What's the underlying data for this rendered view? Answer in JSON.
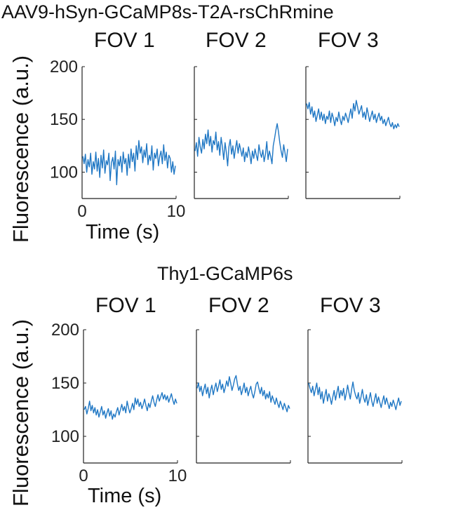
{
  "chart_data": [
    {
      "type": "line",
      "group_title": "AAV9-hSyn-GCaMP8s-T2A-rsChRmine",
      "ylabel": "Fluorescence (a.u.)",
      "xlabel": "Time (s)",
      "ylim": [
        75,
        200
      ],
      "yticks": [
        100,
        150,
        200
      ],
      "xlim": [
        0,
        10
      ],
      "xticks": [
        0,
        10
      ],
      "line_color": "#1f77c4",
      "panels": [
        {
          "title": "FOV 1",
          "y": [
            115,
            108,
            117,
            100,
            112,
            105,
            118,
            98,
            110,
            103,
            119,
            101,
            113,
            95,
            116,
            104,
            121,
            99,
            111,
            107,
            118,
            92,
            109,
            114,
            103,
            120,
            88,
            112,
            106,
            115,
            100,
            119,
            108,
            113,
            97,
            117,
            104,
            122,
            110,
            118,
            101,
            125,
            112,
            130,
            118,
            124,
            109,
            121,
            114,
            127,
            107,
            116,
            111,
            125,
            102,
            118,
            113,
            122,
            106,
            115,
            120,
            108,
            126,
            111,
            119,
            104,
            116,
            113,
            100,
            110,
            98,
            106
          ]
        },
        {
          "title": "FOV 2",
          "y": [
            120,
            128,
            115,
            133,
            124,
            118,
            131,
            122,
            136,
            127,
            140,
            125,
            134,
            119,
            130,
            126,
            138,
            121,
            129,
            116,
            133,
            124,
            112,
            128,
            119,
            106,
            124,
            131,
            117,
            125,
            113,
            122,
            130,
            118,
            127,
            121,
            115,
            123,
            110,
            119,
            114,
            124,
            117,
            108,
            120,
            113,
            122,
            116,
            111,
            126,
            118,
            114,
            121,
            110,
            117,
            129,
            112,
            120,
            115,
            108,
            125,
            132,
            140,
            146,
            138,
            128,
            120,
            114,
            126,
            118,
            110,
            122
          ]
        },
        {
          "title": "FOV 3",
          "y": [
            165,
            160,
            166,
            155,
            162,
            152,
            158,
            148,
            154,
            160,
            150,
            157,
            149,
            155,
            146,
            153,
            150,
            158,
            147,
            156,
            151,
            144,
            152,
            148,
            157,
            150,
            145,
            153,
            149,
            156,
            152,
            147,
            154,
            160,
            151,
            165,
            158,
            168,
            162,
            155,
            159,
            163,
            152,
            157,
            150,
            161,
            155,
            148,
            153,
            158,
            150,
            155,
            147,
            152,
            156,
            149,
            153,
            146,
            150,
            144,
            148,
            152,
            146,
            143,
            147,
            141,
            145,
            142,
            146,
            143
          ]
        }
      ]
    },
    {
      "type": "line",
      "group_title": "Thy1-GCaMP6s",
      "ylabel": "Fluorescence (a.u.)",
      "xlabel": "Time (s)",
      "ylim": [
        75,
        200
      ],
      "yticks": [
        100,
        150,
        200
      ],
      "xlim": [
        0,
        10
      ],
      "xticks": [
        0,
        10
      ],
      "line_color": "#1f77c4",
      "panels": [
        {
          "title": "FOV 1",
          "y": [
            125,
            128,
            121,
            126,
            133,
            124,
            129,
            122,
            127,
            120,
            125,
            118,
            123,
            128,
            120,
            124,
            117,
            122,
            126,
            119,
            124,
            116,
            121,
            118,
            123,
            127,
            120,
            125,
            130,
            124,
            128,
            122,
            133,
            127,
            122,
            126,
            131,
            125,
            136,
            130,
            135,
            128,
            132,
            126,
            130,
            135,
            129,
            124,
            131,
            127,
            133,
            138,
            132,
            128,
            134,
            139,
            133,
            137,
            141,
            135,
            139,
            134,
            138,
            132,
            136,
            140,
            134,
            130,
            135,
            131
          ]
        },
        {
          "title": "FOV 2",
          "y": [
            145,
            150,
            142,
            147,
            138,
            144,
            149,
            140,
            146,
            136,
            143,
            148,
            139,
            145,
            150,
            142,
            147,
            153,
            144,
            149,
            141,
            146,
            152,
            147,
            156,
            150,
            143,
            148,
            154,
            157,
            149,
            143,
            147,
            139,
            144,
            150,
            141,
            146,
            138,
            143,
            147,
            140,
            136,
            142,
            149,
            151,
            145,
            140,
            146,
            138,
            143,
            135,
            140,
            136,
            142,
            132,
            138,
            134,
            130,
            136,
            131,
            127,
            133,
            129,
            125,
            131,
            127,
            123,
            129,
            126
          ]
        },
        {
          "title": "FOV 3",
          "y": [
            150,
            145,
            141,
            147,
            138,
            144,
            150,
            139,
            146,
            135,
            142,
            131,
            138,
            144,
            133,
            140,
            136,
            130,
            137,
            143,
            134,
            141,
            147,
            136,
            143,
            138,
            145,
            134,
            140,
            148,
            141,
            135,
            144,
            151,
            143,
            138,
            135,
            141,
            131,
            137,
            144,
            136,
            132,
            139,
            129,
            135,
            141,
            133,
            128,
            134,
            140,
            131,
            137,
            132,
            127,
            133,
            138,
            130,
            136,
            131,
            126,
            132,
            128,
            134,
            130,
            125,
            131,
            136,
            129,
            133
          ]
        }
      ]
    }
  ]
}
